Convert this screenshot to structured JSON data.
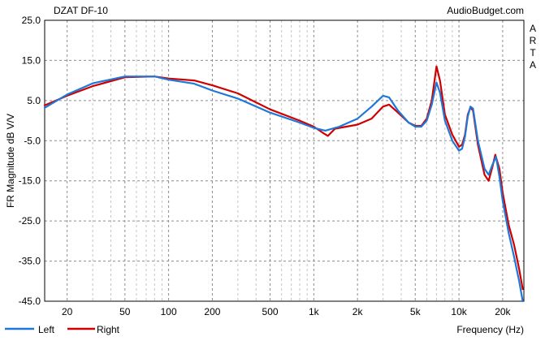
{
  "chart_data": {
    "type": "line",
    "title": "DZAT DF-10",
    "watermark": "AudioBudget.com",
    "side_label": [
      "A",
      "R",
      "T",
      "A"
    ],
    "xlabel": "Frequency (Hz)",
    "ylabel": "FR Magnitude dB V/V",
    "x_scale": "log",
    "xlim": [
      14,
      28000
    ],
    "ylim": [
      -45,
      25
    ],
    "x_ticks": [
      {
        "value": 20,
        "label": "20"
      },
      {
        "value": 50,
        "label": "50"
      },
      {
        "value": 100,
        "label": "100"
      },
      {
        "value": 200,
        "label": "200"
      },
      {
        "value": 500,
        "label": "500"
      },
      {
        "value": 1000,
        "label": "1k"
      },
      {
        "value": 2000,
        "label": "2k"
      },
      {
        "value": 5000,
        "label": "5k"
      },
      {
        "value": 10000,
        "label": "10k"
      },
      {
        "value": 20000,
        "label": "20k"
      }
    ],
    "y_ticks": [
      {
        "value": 25,
        "label": "25.0"
      },
      {
        "value": 15,
        "label": "15.0"
      },
      {
        "value": 5,
        "label": "5.0"
      },
      {
        "value": -5,
        "label": "-5.0"
      },
      {
        "value": -15,
        "label": "-15.0"
      },
      {
        "value": -25,
        "label": "-25.0"
      },
      {
        "value": -35,
        "label": "-35.0"
      },
      {
        "value": -45,
        "label": "-45.0"
      }
    ],
    "grid": true,
    "legend_position": "bottom-left",
    "series": [
      {
        "name": "Left",
        "color": "#1f78d8",
        "points": [
          [
            14,
            3.2
          ],
          [
            20,
            6.5
          ],
          [
            30,
            9.3
          ],
          [
            50,
            11.0
          ],
          [
            80,
            11.0
          ],
          [
            100,
            10.2
          ],
          [
            150,
            9.2
          ],
          [
            200,
            7.5
          ],
          [
            300,
            5.5
          ],
          [
            500,
            2.0
          ],
          [
            800,
            -0.5
          ],
          [
            1000,
            -1.8
          ],
          [
            1200,
            -2.5
          ],
          [
            1500,
            -1.5
          ],
          [
            2000,
            0.5
          ],
          [
            2500,
            3.5
          ],
          [
            3000,
            6.2
          ],
          [
            3300,
            5.8
          ],
          [
            3800,
            2.5
          ],
          [
            4500,
            -0.5
          ],
          [
            5000,
            -1.5
          ],
          [
            5500,
            -1.5
          ],
          [
            6000,
            0.0
          ],
          [
            6500,
            4.0
          ],
          [
            7000,
            9.5
          ],
          [
            7400,
            7.0
          ],
          [
            8000,
            0.0
          ],
          [
            9000,
            -5.0
          ],
          [
            10000,
            -7.5
          ],
          [
            10500,
            -7.0
          ],
          [
            11000,
            -4.0
          ],
          [
            11500,
            1.0
          ],
          [
            12000,
            3.5
          ],
          [
            12500,
            3.0
          ],
          [
            13500,
            -5.0
          ],
          [
            15000,
            -12.0
          ],
          [
            16000,
            -13.5
          ],
          [
            17000,
            -11.0
          ],
          [
            18000,
            -9.0
          ],
          [
            19000,
            -14.0
          ],
          [
            20000,
            -20.0
          ],
          [
            22000,
            -28.0
          ],
          [
            24000,
            -34.0
          ],
          [
            26000,
            -40.0
          ],
          [
            27500,
            -45.0
          ]
        ]
      },
      {
        "name": "Right",
        "color": "#d00000",
        "points": [
          [
            14,
            3.8
          ],
          [
            20,
            6.2
          ],
          [
            30,
            8.6
          ],
          [
            50,
            10.8
          ],
          [
            80,
            11.0
          ],
          [
            100,
            10.5
          ],
          [
            150,
            10.0
          ],
          [
            200,
            8.8
          ],
          [
            300,
            6.8
          ],
          [
            500,
            2.8
          ],
          [
            800,
            0.0
          ],
          [
            1000,
            -1.5
          ],
          [
            1150,
            -3.0
          ],
          [
            1250,
            -3.8
          ],
          [
            1400,
            -2.0
          ],
          [
            2000,
            -1.0
          ],
          [
            2500,
            0.5
          ],
          [
            3000,
            3.5
          ],
          [
            3300,
            4.0
          ],
          [
            3800,
            2.0
          ],
          [
            4500,
            -0.5
          ],
          [
            5000,
            -1.3
          ],
          [
            5500,
            -1.3
          ],
          [
            6000,
            0.5
          ],
          [
            6500,
            5.0
          ],
          [
            7000,
            13.5
          ],
          [
            7400,
            10.0
          ],
          [
            8000,
            1.5
          ],
          [
            9000,
            -3.5
          ],
          [
            10000,
            -6.5
          ],
          [
            10500,
            -6.0
          ],
          [
            11000,
            -3.5
          ],
          [
            11500,
            1.5
          ],
          [
            12000,
            3.3
          ],
          [
            12500,
            2.5
          ],
          [
            13500,
            -6.0
          ],
          [
            15000,
            -13.5
          ],
          [
            16000,
            -15.0
          ],
          [
            17000,
            -11.5
          ],
          [
            17800,
            -8.5
          ],
          [
            19000,
            -12.0
          ],
          [
            20000,
            -18.0
          ],
          [
            22000,
            -26.0
          ],
          [
            24000,
            -31.0
          ],
          [
            26000,
            -37.0
          ],
          [
            27500,
            -42.0
          ]
        ]
      }
    ]
  }
}
